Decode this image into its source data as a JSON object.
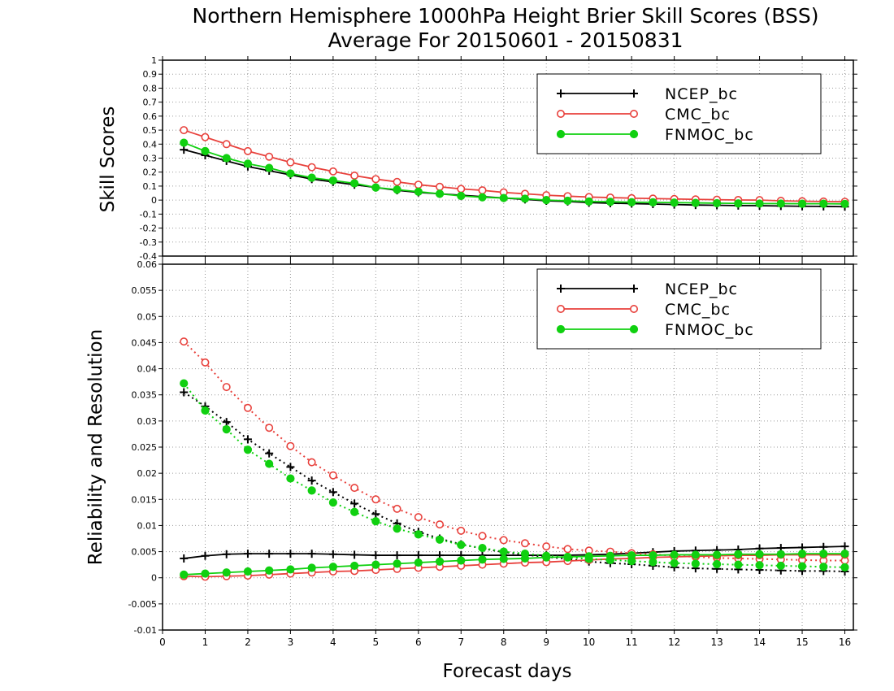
{
  "colors": {
    "NCEP_bc": "#000000",
    "CMC_bc": "#e8413c",
    "FNMOC_bc": "#10d010",
    "grid": "#9a9a9a"
  },
  "chart_data": [
    {
      "type": "line",
      "title": "Northern Hemisphere 1000hPa Height Brier Skill Scores (BSS)",
      "subtitle": "Average For 20150601 - 20150831",
      "xlabel": "",
      "ylabel": "Skill Scores",
      "xlim": [
        0,
        16.2
      ],
      "ylim": [
        -0.4,
        1
      ],
      "yticks": [
        "-0.4",
        "-0.3",
        "-0.2",
        "-0.1",
        "0",
        "0.1",
        "0.2",
        "0.3",
        "0.4",
        "0.5",
        "0.6",
        "0.7",
        "0.8",
        "0.9",
        "1"
      ],
      "grid": true,
      "legend": "top-right",
      "x": [
        0.5,
        1,
        1.5,
        2,
        2.5,
        3,
        3.5,
        4,
        4.5,
        5,
        5.5,
        6,
        6.5,
        7,
        7.5,
        8,
        8.5,
        9,
        9.5,
        10,
        10.5,
        11,
        11.5,
        12,
        12.5,
        13,
        13.5,
        14,
        14.5,
        15,
        15.5,
        16
      ],
      "series": [
        {
          "name": "NCEP_bc",
          "marker": "plus",
          "style": "solid",
          "values": [
            0.36,
            0.32,
            0.28,
            0.24,
            0.21,
            0.18,
            0.15,
            0.13,
            0.11,
            0.09,
            0.07,
            0.055,
            0.045,
            0.035,
            0.025,
            0.015,
            0.005,
            -0.005,
            -0.01,
            -0.018,
            -0.022,
            -0.025,
            -0.028,
            -0.032,
            -0.035,
            -0.037,
            -0.039,
            -0.04,
            -0.042,
            -0.044,
            -0.045,
            -0.047
          ]
        },
        {
          "name": "CMC_bc",
          "marker": "circle-open",
          "style": "solid",
          "values": [
            0.5,
            0.45,
            0.4,
            0.35,
            0.31,
            0.27,
            0.235,
            0.205,
            0.175,
            0.15,
            0.13,
            0.11,
            0.095,
            0.08,
            0.07,
            0.055,
            0.045,
            0.035,
            0.028,
            0.022,
            0.018,
            0.014,
            0.011,
            0.008,
            0.005,
            0.003,
            0.001,
            0,
            -0.005,
            -0.008,
            -0.01,
            -0.012
          ]
        },
        {
          "name": "FNMOC_bc",
          "marker": "circle-filled",
          "style": "solid",
          "values": [
            0.41,
            0.35,
            0.3,
            0.26,
            0.23,
            0.19,
            0.16,
            0.14,
            0.12,
            0.09,
            0.075,
            0.06,
            0.045,
            0.03,
            0.02,
            0.015,
            0.01,
            0,
            -0.005,
            -0.01,
            -0.012,
            -0.015,
            -0.016,
            -0.018,
            -0.02,
            -0.022,
            -0.024,
            -0.025,
            -0.025,
            -0.026,
            -0.026,
            -0.027
          ]
        }
      ]
    },
    {
      "type": "line",
      "title": "",
      "xlabel": "Forecast days",
      "ylabel": "Reliability and Resolution",
      "xlim": [
        0,
        16.2
      ],
      "ylim": [
        -0.01,
        0.06
      ],
      "yticks": [
        "-0.01",
        "-0.005",
        "0",
        "0.005",
        "0.01",
        "0.015",
        "0.02",
        "0.025",
        "0.03",
        "0.035",
        "0.04",
        "0.045",
        "0.05",
        "0.055",
        "0.06"
      ],
      "xticks": [
        "0",
        "1",
        "2",
        "3",
        "4",
        "5",
        "6",
        "7",
        "8",
        "9",
        "10",
        "11",
        "12",
        "13",
        "14",
        "15",
        "16"
      ],
      "grid": true,
      "legend": "top-right",
      "x": [
        0.5,
        1,
        1.5,
        2,
        2.5,
        3,
        3.5,
        4,
        4.5,
        5,
        5.5,
        6,
        6.5,
        7,
        7.5,
        8,
        8.5,
        9,
        9.5,
        10,
        10.5,
        11,
        11.5,
        12,
        12.5,
        13,
        13.5,
        14,
        14.5,
        15,
        15.5,
        16
      ],
      "series": [
        {
          "name": "NCEP_bc",
          "component": "resolution",
          "marker": "plus",
          "style": "dotted",
          "values": [
            0.0355,
            0.0328,
            0.0298,
            0.0265,
            0.0238,
            0.0212,
            0.0186,
            0.0164,
            0.0142,
            0.0122,
            0.0104,
            0.0088,
            0.0075,
            0.0064,
            0.0056,
            0.0049,
            0.0044,
            0.004,
            0.0036,
            0.0031,
            0.0028,
            0.0026,
            0.0023,
            0.002,
            0.0018,
            0.0017,
            0.0016,
            0.0015,
            0.0014,
            0.0013,
            0.0013,
            0.0012
          ]
        },
        {
          "name": "NCEP_bc",
          "component": "reliability",
          "marker": "plus",
          "style": "solid",
          "values": [
            0.0037,
            0.0042,
            0.0045,
            0.0046,
            0.0046,
            0.0046,
            0.0046,
            0.0045,
            0.0044,
            0.0043,
            0.0043,
            0.0043,
            0.0043,
            0.0043,
            0.0043,
            0.0043,
            0.0043,
            0.0043,
            0.0043,
            0.0044,
            0.0045,
            0.0047,
            0.0049,
            0.0051,
            0.0052,
            0.0053,
            0.0054,
            0.0056,
            0.0057,
            0.0058,
            0.0059,
            0.006
          ]
        },
        {
          "name": "CMC_bc",
          "component": "resolution",
          "marker": "circle-open",
          "style": "dotted",
          "values": [
            0.0452,
            0.0412,
            0.0365,
            0.0325,
            0.0287,
            0.0252,
            0.0221,
            0.0196,
            0.0172,
            0.015,
            0.0132,
            0.0116,
            0.0102,
            0.009,
            0.008,
            0.0072,
            0.0066,
            0.006,
            0.0055,
            0.0052,
            0.005,
            0.0047,
            0.0045,
            0.0042,
            0.004,
            0.0038,
            0.0037,
            0.0036,
            0.0035,
            0.0034,
            0.0033,
            0.0033
          ]
        },
        {
          "name": "CMC_bc",
          "component": "reliability",
          "marker": "circle-open",
          "style": "solid",
          "values": [
            0.0003,
            0.0002,
            0.0003,
            0.0004,
            0.0006,
            0.0008,
            0.001,
            0.0012,
            0.0013,
            0.0015,
            0.0017,
            0.0019,
            0.0021,
            0.0023,
            0.0025,
            0.0027,
            0.0029,
            0.003,
            0.0032,
            0.0034,
            0.0036,
            0.0037,
            0.0039,
            0.004,
            0.0041,
            0.0042,
            0.0043,
            0.0043,
            0.0044,
            0.0044,
            0.0044,
            0.0044
          ]
        },
        {
          "name": "FNMOC_bc",
          "component": "resolution",
          "marker": "circle-filled",
          "style": "dotted",
          "values": [
            0.0372,
            0.032,
            0.0284,
            0.0245,
            0.0218,
            0.019,
            0.0167,
            0.0144,
            0.0126,
            0.0108,
            0.0094,
            0.0083,
            0.0073,
            0.0063,
            0.0057,
            0.005,
            0.0046,
            0.0042,
            0.0039,
            0.0036,
            0.0034,
            0.0032,
            0.003,
            0.0028,
            0.0027,
            0.0026,
            0.0025,
            0.0024,
            0.0023,
            0.0022,
            0.0021,
            0.002
          ]
        },
        {
          "name": "FNMOC_bc",
          "component": "reliability",
          "marker": "circle-filled",
          "style": "solid",
          "values": [
            0.0006,
            0.0008,
            0.001,
            0.0012,
            0.0014,
            0.0016,
            0.0019,
            0.0021,
            0.0023,
            0.0025,
            0.0027,
            0.0029,
            0.0031,
            0.0033,
            0.0035,
            0.0036,
            0.0037,
            0.0039,
            0.004,
            0.0041,
            0.0042,
            0.0043,
            0.0043,
            0.0044,
            0.0044,
            0.0044,
            0.0045,
            0.0045,
            0.0045,
            0.0046,
            0.0046,
            0.0046
          ]
        }
      ]
    }
  ]
}
